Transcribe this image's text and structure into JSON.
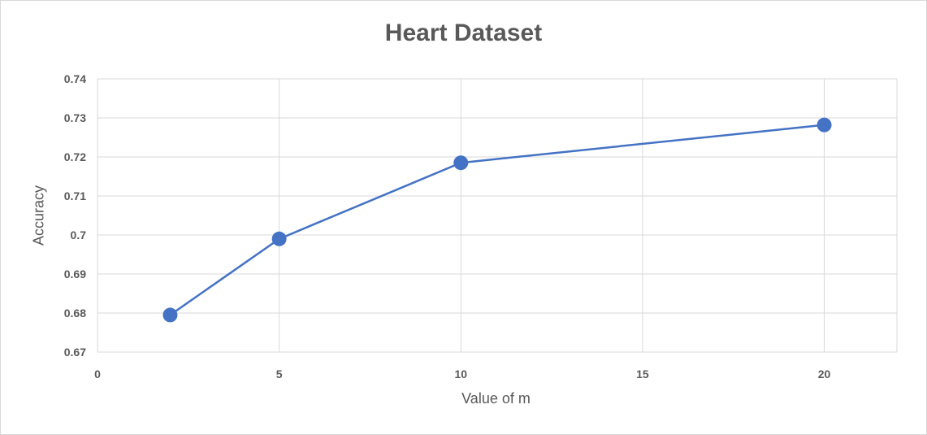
{
  "chart_data": {
    "type": "scatter",
    "title": "Heart Dataset",
    "xlabel": "Value of m",
    "ylabel": "Accuracy",
    "xlim": [
      0,
      22
    ],
    "ylim": [
      0.67,
      0.74
    ],
    "x_ticks": [
      0,
      5,
      10,
      15,
      20
    ],
    "y_ticks": [
      0.67,
      0.68,
      0.69,
      0.7,
      0.71,
      0.72,
      0.73,
      0.74
    ],
    "grid": true,
    "lines": true,
    "series": [
      {
        "x": [
          2,
          5,
          10,
          20
        ],
        "y": [
          0.6795,
          0.699,
          0.7185,
          0.7282
        ]
      }
    ],
    "colors": {
      "series": "#4472c4",
      "grid": "#d9d9d9",
      "text": "#595959"
    }
  }
}
